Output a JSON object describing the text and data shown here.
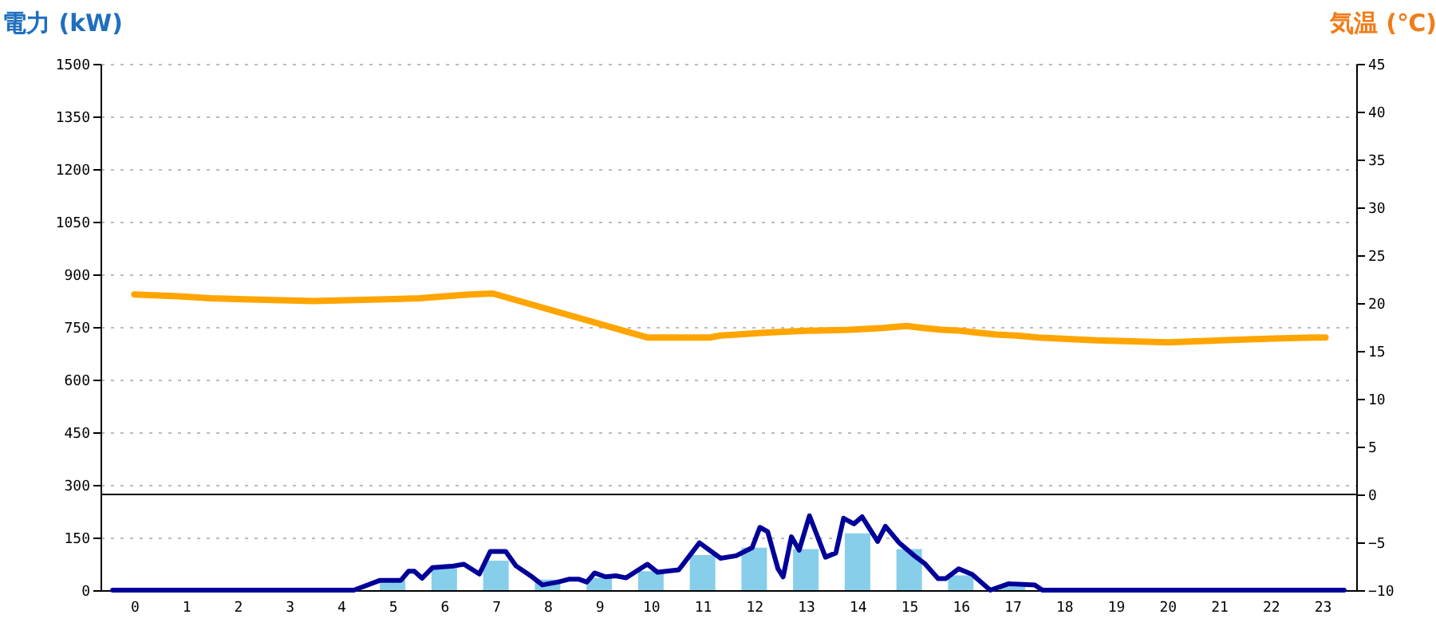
{
  "chart_data": {
    "type": "bar",
    "ylabel": "電力 (kW)",
    "y2label": "気温 (℃)",
    "x": [
      0,
      1,
      2,
      3,
      4,
      5,
      6,
      7,
      8,
      9,
      10,
      11,
      12,
      13,
      14,
      15,
      16,
      17,
      18,
      19,
      20,
      21,
      22,
      23
    ],
    "xlim": [
      -0.5,
      23.5
    ],
    "xticks": [
      0,
      1,
      2,
      3,
      4,
      5,
      6,
      7,
      8,
      9,
      10,
      11,
      12,
      13,
      14,
      15,
      16,
      17,
      18,
      19,
      20,
      21,
      22,
      23
    ],
    "ylim": [
      0,
      1500
    ],
    "yticks": [
      0,
      150,
      300,
      450,
      600,
      750,
      900,
      1050,
      1200,
      1350,
      1500
    ],
    "y2lim": [
      -10,
      45
    ],
    "y2ticks": [
      -10,
      -5,
      0,
      5,
      10,
      15,
      20,
      25,
      30,
      35,
      40,
      45
    ],
    "grid": "y",
    "ref_lines": [
      {
        "axis": "y2",
        "value": 0,
        "color": "#000000"
      }
    ],
    "series": [
      {
        "color": "#87ceeb",
        "values": [
          0,
          0,
          0,
          0,
          0,
          30,
          69,
          84,
          30,
          35,
          54,
          100,
          121,
          117,
          162,
          117,
          42,
          10,
          0,
          0,
          0,
          0,
          0,
          0
        ]
      },
      {
        "type": "line",
        "color": "#000099",
        "x": [
          -0.42,
          4.25,
          4.76,
          5.16,
          5.31,
          5.42,
          5.57,
          5.77,
          6.18,
          6.38,
          6.68,
          6.89,
          7.19,
          7.39,
          7.7,
          7.9,
          8.2,
          8.41,
          8.61,
          8.76,
          8.91,
          9.12,
          9.32,
          9.52,
          9.93,
          10.13,
          10.54,
          10.94,
          11.35,
          11.65,
          11.96,
          12.11,
          12.26,
          12.46,
          12.56,
          12.72,
          12.87,
          13.07,
          13.38,
          13.58,
          13.73,
          13.93,
          14.09,
          14.39,
          14.54,
          14.8,
          15.1,
          15.3,
          15.56,
          15.71,
          15.96,
          16.22,
          16.57,
          16.92,
          17.43,
          17.58,
          23.42
        ],
        "values": [
          0,
          0,
          28,
          28,
          54,
          54,
          34,
          64,
          69,
          74,
          46,
          110,
          110,
          69,
          38,
          15,
          23,
          31,
          31,
          23,
          49,
          38,
          41,
          35,
          74,
          51,
          58,
          135,
          91,
          98,
          121,
          179,
          167,
          61,
          38,
          152,
          114,
          212,
          94,
          106,
          205,
          189,
          209,
          139,
          182,
          136,
          98,
          76,
          33,
          33,
          61,
          45,
          0,
          18,
          15,
          0,
          0
        ]
      },
      {
        "type": "line",
        "axis": "y2",
        "color": "#ffa500",
        "x": [
          0,
          0.85,
          1.48,
          2.12,
          3.46,
          4.88,
          5.52,
          6.02,
          6.5,
          6.94,
          9.93,
          11.14,
          11.35,
          11.67,
          12.18,
          12.99,
          13.85,
          14.49,
          14.95,
          15.27,
          15.63,
          16.01,
          16.34,
          16.69,
          17.08,
          17.5,
          18.62,
          20.02,
          21.03,
          22.05,
          22.81,
          23.06
        ],
        "values": [
          20.9,
          20.7,
          20.5,
          20.4,
          20.2,
          20.4,
          20.5,
          20.7,
          20.9,
          21.0,
          16.4,
          16.4,
          16.6,
          16.7,
          16.9,
          17.1,
          17.2,
          17.4,
          17.6,
          17.4,
          17.2,
          17.1,
          16.9,
          16.7,
          16.6,
          16.4,
          16.1,
          15.9,
          16.1,
          16.3,
          16.4,
          16.4
        ]
      }
    ]
  }
}
